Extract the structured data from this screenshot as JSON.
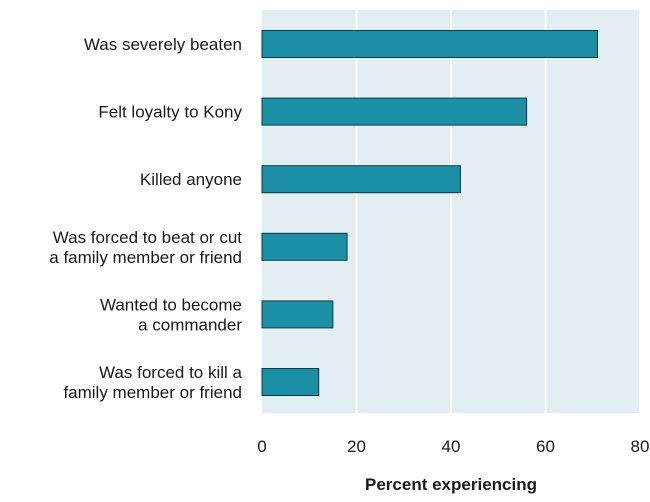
{
  "chart_data": {
    "type": "bar",
    "orientation": "horizontal",
    "categories": [
      [
        "Was severely beaten"
      ],
      [
        "Felt loyalty to Kony"
      ],
      [
        "Killed anyone"
      ],
      [
        "Was forced to beat or cut",
        "a family member or friend"
      ],
      [
        "Wanted to become",
        "a commander"
      ],
      [
        "Was forced to kill a",
        "family member or friend"
      ]
    ],
    "values": [
      71,
      56,
      42,
      18,
      15,
      12
    ],
    "xlabel": "Percent experiencing",
    "xlim": [
      0,
      80
    ],
    "xticks": [
      0,
      20,
      40,
      60,
      80
    ],
    "grid": true,
    "colors": {
      "bar": "#1b8fa5",
      "bar_edge": "#0c3a45",
      "plot_background": "#e3eef2",
      "grid": "#ffffff"
    }
  }
}
